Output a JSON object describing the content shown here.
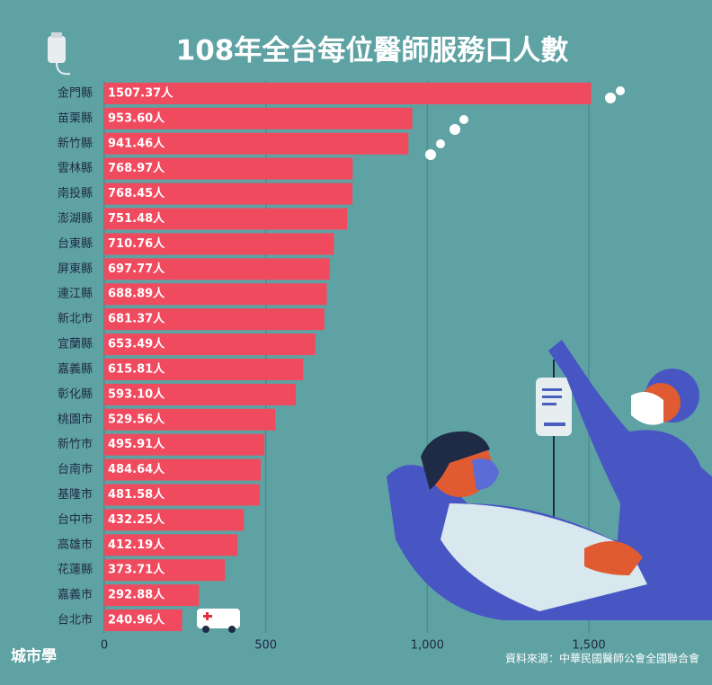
{
  "chart_data": {
    "type": "bar",
    "orientation": "horizontal",
    "title": "108年全台每位醫師服務口人數",
    "categories": [
      "金門縣",
      "苗栗縣",
      "新竹縣",
      "雲林縣",
      "南投縣",
      "澎湖縣",
      "台東縣",
      "屏東縣",
      "連江縣",
      "新北市",
      "宜蘭縣",
      "嘉義縣",
      "彰化縣",
      "桃園市",
      "新竹市",
      "台南市",
      "基隆市",
      "台中市",
      "高雄市",
      "花蓮縣",
      "嘉義市",
      "台北市"
    ],
    "values": [
      1507.37,
      953.6,
      941.46,
      768.97,
      768.45,
      751.48,
      710.76,
      697.77,
      688.89,
      681.37,
      653.49,
      615.81,
      593.1,
      529.56,
      495.91,
      484.64,
      481.58,
      432.25,
      412.19,
      373.71,
      292.88,
      240.96
    ],
    "value_labels": [
      "1507.37人",
      "953.60人",
      "941.46人",
      "768.97人",
      "768.45人",
      "751.48人",
      "710.76人",
      "697.77人",
      "688.89人",
      "681.37人",
      "653.49人",
      "615.81人",
      "593.10人",
      "529.56人",
      "495.91人",
      "484.64人",
      "481.58人",
      "432.25人",
      "412.19人",
      "373.71人",
      "292.88人",
      "240.96人"
    ],
    "color": "#f04a5f",
    "xlim": [
      0,
      1500
    ],
    "xticks": [
      0,
      500,
      {
        "value": 1000,
        "label": "1,000"
      },
      {
        "value": 1500,
        "label": "1,500"
      }
    ],
    "grid": true,
    "source": "資料來源：中華民國醫師公會全國聯合會",
    "logo": "城市學"
  }
}
